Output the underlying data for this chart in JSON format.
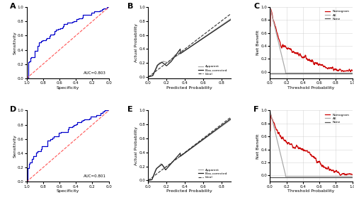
{
  "panel_labels": [
    "A",
    "B",
    "C",
    "D",
    "E",
    "F"
  ],
  "auc_A": "AUC=0.803",
  "auc_D": "AUC=0.801",
  "roc_color": "#0000CC",
  "diag_color": "#FF5555",
  "background_color": "#ffffff",
  "plot_bg_color": "#ffffff",
  "calibration_apparent_color": "#aaaaaa",
  "calibration_biascorrected_color": "#222222",
  "calibration_ideal_color": "#333333",
  "dca_nomogram_color": "#CC0000",
  "dca_all_color": "#aaaaaa",
  "dca_none_color": "#555555",
  "ylabel_roc": "Sensitivity",
  "xlabel_roc": "Specificity",
  "ylabel_cal": "Actual Probability",
  "xlabel_cal": "Predicted Probability",
  "ylabel_dca": "Net Benefit",
  "xlabel_dca": "Threshold Probability",
  "legend_apparent": "Apparent",
  "legend_biascorrected": "Bias-corrected",
  "legend_ideal": "Ideal",
  "legend_nomogram": "Nomogram",
  "legend_all": "All",
  "legend_none": "None"
}
